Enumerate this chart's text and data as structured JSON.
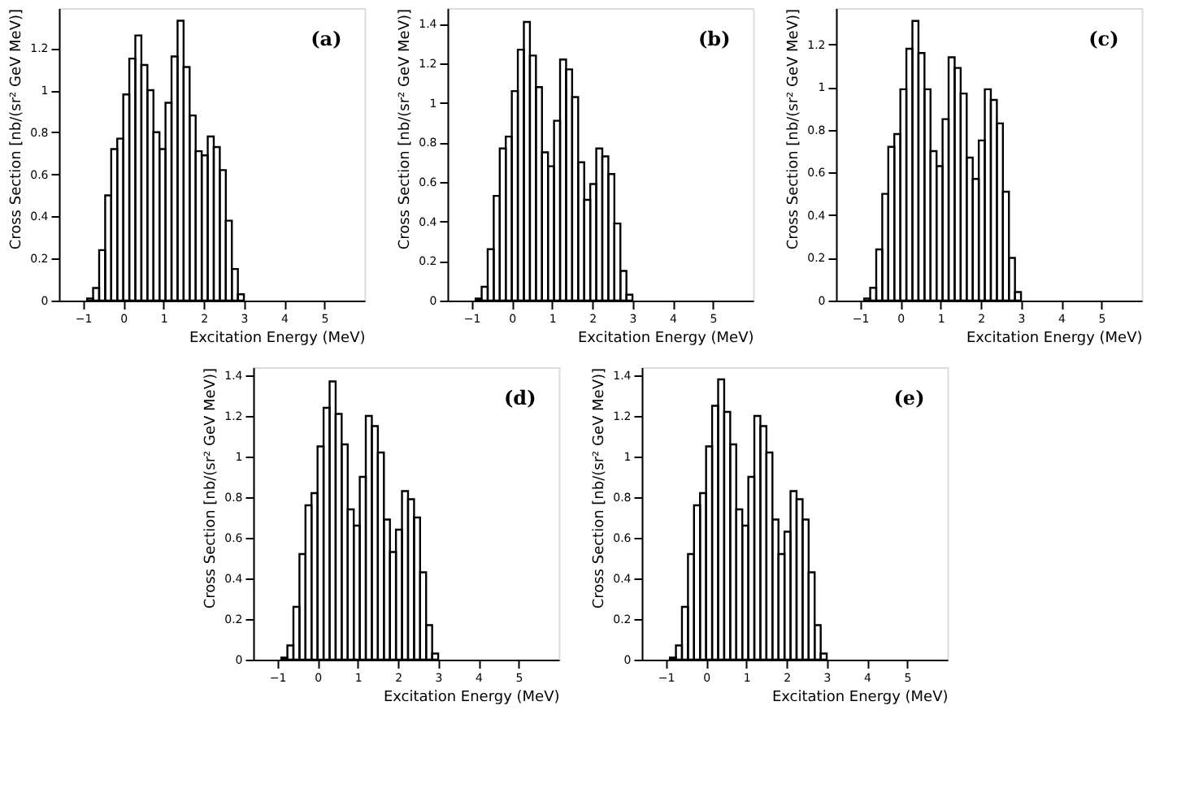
{
  "chart_data": [
    {
      "type": "histogram",
      "annotations": [
        "(a)"
      ],
      "xlabel": "Excitation Energy (MeV)",
      "ylabel": "Cross Section [nb/(sr² GeV MeV)]",
      "color": "#000000",
      "grid": false,
      "bins": [
        -0.9,
        -0.75,
        -0.6,
        -0.45,
        -0.3,
        -0.15,
        0,
        0.15,
        0.3,
        0.45,
        0.6,
        0.75,
        0.9,
        1.05,
        1.2,
        1.35,
        1.5,
        1.65,
        1.8,
        1.95,
        2.1,
        2.25,
        2.4,
        2.55,
        2.7,
        2.85,
        3.0
      ],
      "values": [
        0.01,
        0.06,
        0.24,
        0.5,
        0.72,
        0.77,
        0.98,
        1.15,
        1.26,
        1.12,
        1.0,
        0.8,
        0.72,
        0.94,
        1.16,
        1.33,
        1.11,
        0.88,
        0.71,
        0.69,
        0.78,
        0.73,
        0.62,
        0.38,
        0.15,
        0.03
      ],
      "xlim": [
        -1.6,
        6.0
      ],
      "xticks": [
        -1,
        0,
        1,
        2,
        3,
        4,
        5
      ],
      "ylim": [
        0,
        1.39
      ],
      "yticks": [
        0,
        0.2,
        0.4,
        0.6,
        0.8,
        1,
        1.2
      ]
    },
    {
      "type": "histogram",
      "annotations": [
        "(b)"
      ],
      "xlabel": "Excitation Energy (MeV)",
      "ylabel": "Cross Section [nb/(sr² GeV MeV)]",
      "color": "#000000",
      "grid": false,
      "bins": [
        -0.9,
        -0.75,
        -0.6,
        -0.45,
        -0.3,
        -0.15,
        0,
        0.15,
        0.3,
        0.45,
        0.6,
        0.75,
        0.9,
        1.05,
        1.2,
        1.35,
        1.5,
        1.65,
        1.8,
        1.95,
        2.1,
        2.25,
        2.4,
        2.55,
        2.7,
        2.85,
        3.0
      ],
      "values": [
        0.01,
        0.07,
        0.26,
        0.53,
        0.77,
        0.83,
        1.06,
        1.27,
        1.41,
        1.24,
        1.08,
        0.75,
        0.68,
        0.91,
        1.22,
        1.17,
        1.03,
        0.7,
        0.51,
        0.59,
        0.77,
        0.73,
        0.64,
        0.39,
        0.15,
        0.03
      ],
      "xlim": [
        -1.6,
        6.0
      ],
      "xticks": [
        -1,
        0,
        1,
        2,
        3,
        4,
        5
      ],
      "ylim": [
        0,
        1.48
      ],
      "yticks": [
        0,
        0.2,
        0.4,
        0.6,
        0.8,
        1,
        1.2,
        1.4
      ]
    },
    {
      "type": "histogram",
      "annotations": [
        "(c)"
      ],
      "xlabel": "Excitation Energy (MeV)",
      "ylabel": "Cross Section [nb/(sr² GeV MeV)]",
      "color": "#000000",
      "grid": false,
      "bins": [
        -0.9,
        -0.75,
        -0.6,
        -0.45,
        -0.3,
        -0.15,
        0,
        0.15,
        0.3,
        0.45,
        0.6,
        0.75,
        0.9,
        1.05,
        1.2,
        1.35,
        1.5,
        1.65,
        1.8,
        1.95,
        2.1,
        2.25,
        2.4,
        2.55,
        2.7,
        2.85,
        3.0
      ],
      "values": [
        0.01,
        0.06,
        0.24,
        0.5,
        0.72,
        0.78,
        0.99,
        1.18,
        1.31,
        1.16,
        0.99,
        0.7,
        0.63,
        0.85,
        1.14,
        1.09,
        0.97,
        0.67,
        0.57,
        0.75,
        0.99,
        0.94,
        0.83,
        0.51,
        0.2,
        0.04
      ],
      "xlim": [
        -1.6,
        6.0
      ],
      "xticks": [
        -1,
        0,
        1,
        2,
        3,
        4,
        5
      ],
      "ylim": [
        0,
        1.37
      ],
      "yticks": [
        0,
        0.2,
        0.4,
        0.6,
        0.8,
        1,
        1.2
      ]
    },
    {
      "type": "histogram",
      "annotations": [
        "(d)"
      ],
      "xlabel": "Excitation Energy (MeV)",
      "ylabel": "Cross Section [nb/(sr² GeV MeV)]",
      "color": "#000000",
      "grid": false,
      "bins": [
        -0.9,
        -0.75,
        -0.6,
        -0.45,
        -0.3,
        -0.15,
        0,
        0.15,
        0.3,
        0.45,
        0.6,
        0.75,
        0.9,
        1.05,
        1.2,
        1.35,
        1.5,
        1.65,
        1.8,
        1.95,
        2.1,
        2.25,
        2.4,
        2.55,
        2.7,
        2.85,
        3.0
      ],
      "values": [
        0.01,
        0.07,
        0.26,
        0.52,
        0.76,
        0.82,
        1.05,
        1.24,
        1.37,
        1.21,
        1.06,
        0.74,
        0.66,
        0.9,
        1.2,
        1.15,
        1.02,
        0.69,
        0.53,
        0.64,
        0.83,
        0.79,
        0.7,
        0.43,
        0.17,
        0.03
      ],
      "xlim": [
        -1.6,
        6.0
      ],
      "xticks": [
        -1,
        0,
        1,
        2,
        3,
        4,
        5
      ],
      "ylim": [
        0,
        1.44
      ],
      "yticks": [
        0,
        0.2,
        0.4,
        0.6,
        0.8,
        1,
        1.2,
        1.4
      ]
    },
    {
      "type": "histogram",
      "annotations": [
        "(e)"
      ],
      "xlabel": "Excitation Energy (MeV)",
      "ylabel": "Cross Section [nb/(sr² GeV MeV)]",
      "color": "#000000",
      "grid": false,
      "bins": [
        -0.9,
        -0.75,
        -0.6,
        -0.45,
        -0.3,
        -0.15,
        0,
        0.15,
        0.3,
        0.45,
        0.6,
        0.75,
        0.9,
        1.05,
        1.2,
        1.35,
        1.5,
        1.65,
        1.8,
        1.95,
        2.1,
        2.25,
        2.4,
        2.55,
        2.7,
        2.85,
        3.0
      ],
      "values": [
        0.01,
        0.07,
        0.26,
        0.52,
        0.76,
        0.82,
        1.05,
        1.25,
        1.38,
        1.22,
        1.06,
        0.74,
        0.66,
        0.9,
        1.2,
        1.15,
        1.02,
        0.69,
        0.52,
        0.63,
        0.83,
        0.79,
        0.69,
        0.43,
        0.17,
        0.03
      ],
      "xlim": [
        -1.6,
        6.0
      ],
      "xticks": [
        -1,
        0,
        1,
        2,
        3,
        4,
        5
      ],
      "ylim": [
        0,
        1.44
      ],
      "yticks": [
        0,
        0.2,
        0.4,
        0.6,
        0.8,
        1,
        1.2,
        1.4
      ]
    }
  ]
}
